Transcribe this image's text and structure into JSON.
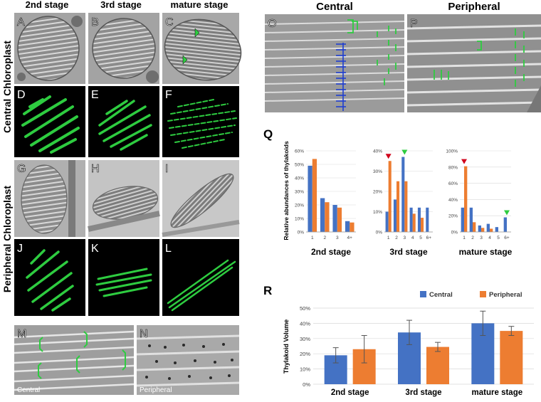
{
  "figure": {
    "left": {
      "stage_headers": [
        "2nd stage",
        "3rd stage",
        "mature stage"
      ],
      "row_labels": {
        "central": "Central Chloroplast",
        "peripheral": "Peripheral Chloroplast"
      },
      "panels": [
        "A",
        "B",
        "C",
        "D",
        "E",
        "F",
        "G",
        "H",
        "I",
        "J",
        "K",
        "L"
      ],
      "bottom_panels": [
        {
          "letter": "M",
          "caption": "Central"
        },
        {
          "letter": "N",
          "caption": "Peripheral"
        }
      ]
    },
    "right_top": {
      "headers": [
        "Central",
        "Peripheral"
      ],
      "panels": [
        "O",
        "P"
      ]
    },
    "panel_q_letter": "Q",
    "panel_r_letter": "R"
  },
  "colors": {
    "central": "#4472C4",
    "peripheral": "#ED7D31",
    "tomo_bg": "#9a9a9a",
    "seg_bg": "#000000",
    "seg_fg": "#2ecc40",
    "marker_red": "#d0021b",
    "marker_green": "#2ecc40"
  },
  "chart_data": [
    {
      "type": "bar",
      "panel": "Q",
      "title": "2nd stage",
      "ylabel": "Relative abundances of thylakoids",
      "categories": [
        "1",
        "2",
        "3",
        "4+"
      ],
      "yticks": [
        "0%",
        "10%",
        "20%",
        "30%",
        "40%",
        "50%",
        "60%"
      ],
      "ylim": [
        0,
        60
      ],
      "series": [
        {
          "values": [
            49,
            25,
            20,
            8
          ]
        },
        {
          "values": [
            54,
            22,
            18,
            7
          ]
        }
      ]
    },
    {
      "type": "bar",
      "panel": "Q",
      "title": "3rd stage",
      "categories": [
        "1",
        "2",
        "3",
        "4",
        "5",
        "6+"
      ],
      "yticks": [
        "0%",
        "10%",
        "20%",
        "30%",
        "40%"
      ],
      "ylim": [
        0,
        40
      ],
      "series": [
        {
          "values": [
            10,
            16,
            37,
            12,
            12,
            12
          ]
        },
        {
          "values": [
            35,
            25,
            25,
            9,
            7,
            0
          ]
        }
      ],
      "markers": [
        {
          "category_index": 0,
          "color": "red"
        },
        {
          "category_index": 2,
          "color": "green"
        }
      ]
    },
    {
      "type": "bar",
      "panel": "Q",
      "title": "mature stage",
      "categories": [
        "1",
        "2",
        "3",
        "4",
        "5",
        "6+"
      ],
      "yticks": [
        "0%",
        "20%",
        "40%",
        "60%",
        "80%",
        "100%"
      ],
      "ylim": [
        0,
        100
      ],
      "series": [
        {
          "values": [
            30,
            30,
            8,
            10,
            6,
            18
          ]
        },
        {
          "values": [
            81,
            12,
            5,
            4,
            0,
            0
          ]
        }
      ],
      "markers": [
        {
          "category_index": 0,
          "color": "red"
        },
        {
          "category_index": 5,
          "color": "green"
        }
      ]
    },
    {
      "type": "bar",
      "panel": "R",
      "ylabel": "Thylakoid Volume",
      "categories": [
        "2nd stage",
        "3rd stage",
        "mature stage"
      ],
      "yticks": [
        "0%",
        "10%",
        "20%",
        "30%",
        "40%",
        "50%"
      ],
      "ylim": [
        0,
        50
      ],
      "legend": {
        "position": "top-right"
      },
      "series": [
        {
          "name": "Central",
          "values": [
            19,
            34,
            40
          ],
          "errors": [
            5,
            8,
            8
          ]
        },
        {
          "name": "Peripheral",
          "values": [
            23,
            24.5,
            35
          ],
          "errors": [
            9,
            3,
            3
          ]
        }
      ]
    }
  ]
}
